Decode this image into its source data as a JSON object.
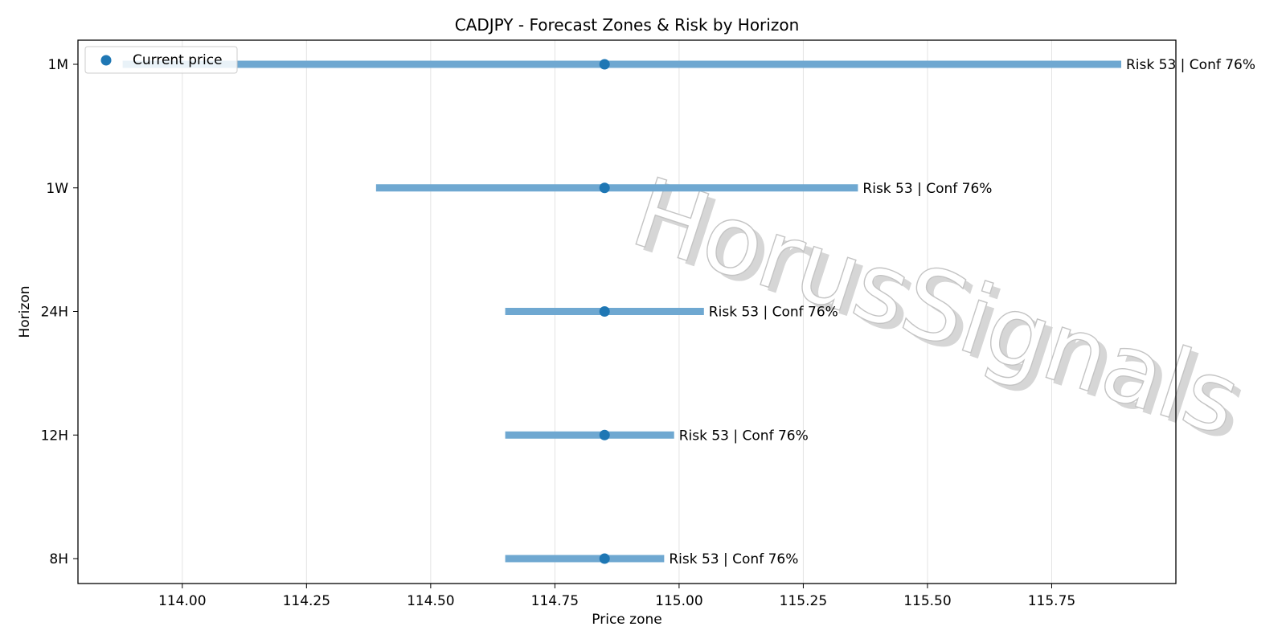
{
  "chart_data": {
    "type": "range",
    "title": "CADJPY - Forecast Zones & Risk by Horizon",
    "xlabel": "Price zone",
    "ylabel": "Horizon",
    "xlim": [
      113.79,
      116.0
    ],
    "xticks": [
      114.0,
      114.25,
      114.5,
      114.75,
      115.0,
      115.25,
      115.5,
      115.75
    ],
    "xtick_labels": [
      "114.00",
      "114.25",
      "114.50",
      "114.75",
      "115.00",
      "115.25",
      "115.50",
      "115.75"
    ],
    "grid": "x",
    "legend": {
      "position": "top-left",
      "entries": [
        "Current price"
      ]
    },
    "current_price": 114.85,
    "horizons": [
      {
        "label": "1M",
        "low": 113.88,
        "high": 115.89,
        "annotation": "Risk 53 | Conf 76%"
      },
      {
        "label": "1W",
        "low": 114.39,
        "high": 115.36,
        "annotation": "Risk 53 | Conf 76%"
      },
      {
        "label": "24H",
        "low": 114.65,
        "high": 115.05,
        "annotation": "Risk 53 | Conf 76%"
      },
      {
        "label": "12H",
        "low": 114.65,
        "high": 114.99,
        "annotation": "Risk 53 | Conf 76%"
      },
      {
        "label": "8H",
        "low": 114.65,
        "high": 114.97,
        "annotation": "Risk 53 | Conf 76%"
      }
    ],
    "colors": {
      "range": "#6fa8d1",
      "point": "#1f77b4",
      "grid": "#e3e3e3"
    }
  },
  "watermark": "HorusSignals"
}
